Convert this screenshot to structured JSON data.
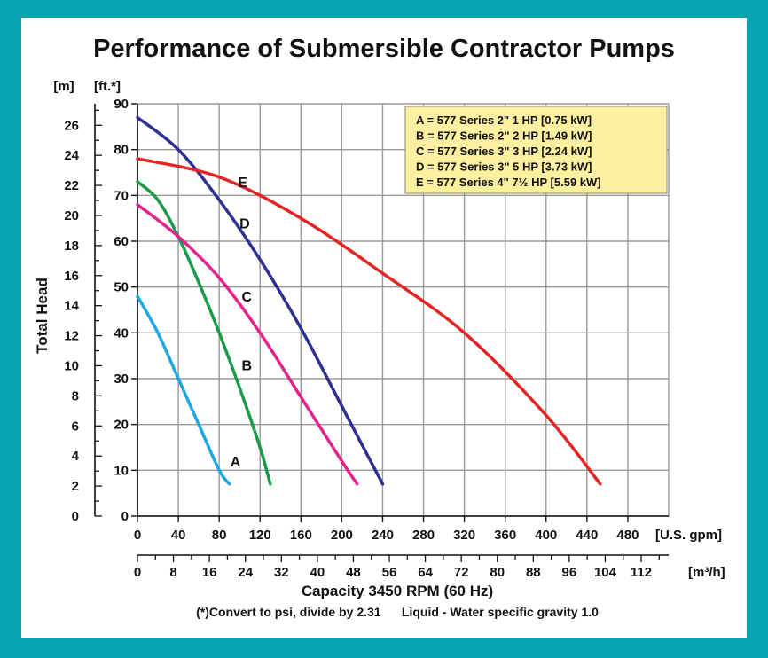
{
  "chart_data": {
    "type": "line",
    "title": "Performance of Submersible Contractor Pumps",
    "ylabel": "Total Head",
    "y_units_left": "[m]",
    "y_units_right": "[ft.*]",
    "xlabel": "Capacity 3450 RPM (60 Hz)",
    "x_units_top": "[U.S. gpm]",
    "x_units_bottom": "[m³/h]",
    "ylim_ft": [
      0,
      90
    ],
    "xlim_gpm": [
      0,
      520
    ],
    "grid": true,
    "footnote": "(*)Convert to psi, divide by 2.31      Liquid - Water specific gravity 1.0",
    "y_ticks_ft": [
      "0",
      "10",
      "20",
      "30",
      "40",
      "50",
      "60",
      "70",
      "80",
      "90"
    ],
    "y_ticks_m": [
      "0",
      "2",
      "4",
      "6",
      "8",
      "10",
      "12",
      "14",
      "16",
      "18",
      "20",
      "22",
      "24",
      "26"
    ],
    "x_ticks_gpm": [
      "0",
      "40",
      "80",
      "120",
      "160",
      "200",
      "240",
      "280",
      "320",
      "360",
      "400",
      "440",
      "480"
    ],
    "x_ticks_m3h": [
      "0",
      "8",
      "16",
      "24",
      "32",
      "40",
      "48",
      "56",
      "64",
      "72",
      "80",
      "88",
      "96",
      "104",
      "112"
    ],
    "legend": [
      "A = 577 Series 2\" 1 HP [0.75 kW]",
      "B = 577 Series 2\" 2 HP [1.49 kW]",
      "C = 577 Series 3\" 3 HP [2.24 kW]",
      "D = 577 Series 3\" 5 HP [3.73 kW]",
      "E = 577 Series 4\" 7½ HP [5.59 kW]"
    ],
    "series": [
      {
        "name": "A",
        "color": "#1fa8e0",
        "x": [
          0,
          20,
          40,
          60,
          80,
          90
        ],
        "y": [
          48,
          40,
          30,
          20,
          10,
          7
        ]
      },
      {
        "name": "B",
        "color": "#1a9b4a",
        "x": [
          0,
          20,
          40,
          60,
          80,
          100,
          120,
          130
        ],
        "y": [
          73,
          69,
          61,
          51,
          40,
          28,
          15,
          7
        ]
      },
      {
        "name": "C",
        "color": "#e4238f",
        "x": [
          0,
          40,
          80,
          120,
          160,
          200,
          215
        ],
        "y": [
          68,
          61,
          52,
          40,
          26,
          12,
          7
        ]
      },
      {
        "name": "D",
        "color": "#2e3092",
        "x": [
          0,
          40,
          80,
          120,
          160,
          200,
          240
        ],
        "y": [
          87,
          80,
          69,
          56,
          41,
          24,
          7
        ]
      },
      {
        "name": "E",
        "color": "#e32526",
        "x": [
          0,
          80,
          160,
          240,
          320,
          400,
          453
        ],
        "y": [
          78,
          74,
          65,
          53,
          40,
          22,
          7
        ]
      }
    ],
    "curve_labels": [
      {
        "text": "A",
        "x": 96,
        "y": 12
      },
      {
        "text": "B",
        "x": 107,
        "y": 33
      },
      {
        "text": "C",
        "x": 107,
        "y": 48
      },
      {
        "text": "D",
        "x": 105,
        "y": 64
      },
      {
        "text": "E",
        "x": 103,
        "y": 73
      }
    ]
  }
}
